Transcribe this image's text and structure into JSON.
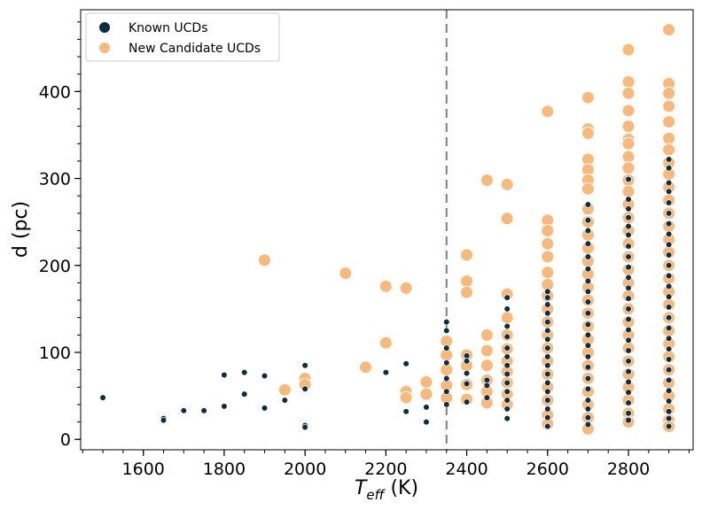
{
  "chart_data": {
    "type": "scatter",
    "xlabel_main": "T",
    "xlabel_sub": "eff",
    "xlabel_unit": " (K)",
    "ylabel": "d (pc)",
    "xlim": [
      1445,
      2960
    ],
    "ylim": [
      -12,
      494
    ],
    "xticks": [
      1600,
      1800,
      2000,
      2200,
      2400,
      2600,
      2800
    ],
    "yticks": [
      0,
      100,
      200,
      300,
      400
    ],
    "xminor_step": 50,
    "yminor_step": 20,
    "vline_x": 2350,
    "colors": {
      "known": "#0b2e45",
      "candidate": "#f9b97a",
      "vline": "#808080"
    },
    "legend": {
      "position": "top-left",
      "entries": [
        "Known UCDs",
        "New Candidate UCDs"
      ]
    },
    "series": [
      {
        "name": "New Candidate UCDs",
        "points": [
          [
            1900,
            206
          ],
          [
            1950,
            57
          ],
          [
            2000,
            70
          ],
          [
            2000,
            63
          ],
          [
            2100,
            191
          ],
          [
            2150,
            83
          ],
          [
            2200,
            176
          ],
          [
            2200,
            111
          ],
          [
            2250,
            174
          ],
          [
            2250,
            55
          ],
          [
            2250,
            48
          ],
          [
            2300,
            66
          ],
          [
            2300,
            52
          ],
          [
            2350,
            113
          ],
          [
            2350,
            97
          ],
          [
            2350,
            80
          ],
          [
            2350,
            62
          ],
          [
            2350,
            48
          ],
          [
            2400,
            212
          ],
          [
            2400,
            182
          ],
          [
            2400,
            169
          ],
          [
            2400,
            97
          ],
          [
            2400,
            85
          ],
          [
            2400,
            63
          ],
          [
            2400,
            46
          ],
          [
            2450,
            298
          ],
          [
            2450,
            120
          ],
          [
            2450,
            102
          ],
          [
            2450,
            85
          ],
          [
            2450,
            68
          ],
          [
            2450,
            55
          ],
          [
            2450,
            42
          ],
          [
            2500,
            293
          ],
          [
            2500,
            254
          ],
          [
            2500,
            167
          ],
          [
            2500,
            140
          ],
          [
            2500,
            120
          ],
          [
            2500,
            104
          ],
          [
            2500,
            90
          ],
          [
            2500,
            78
          ],
          [
            2500,
            65
          ],
          [
            2500,
            52
          ],
          [
            2500,
            40
          ],
          [
            2600,
            377
          ],
          [
            2600,
            252
          ],
          [
            2600,
            240
          ],
          [
            2600,
            225
          ],
          [
            2600,
            210
          ],
          [
            2600,
            192
          ],
          [
            2600,
            178
          ],
          [
            2600,
            165
          ],
          [
            2600,
            150
          ],
          [
            2600,
            135
          ],
          [
            2600,
            120
          ],
          [
            2600,
            105
          ],
          [
            2600,
            90
          ],
          [
            2600,
            75
          ],
          [
            2600,
            60
          ],
          [
            2600,
            45
          ],
          [
            2600,
            28
          ],
          [
            2600,
            18
          ],
          [
            2700,
            393
          ],
          [
            2700,
            357
          ],
          [
            2700,
            352
          ],
          [
            2700,
            322
          ],
          [
            2700,
            310
          ],
          [
            2700,
            298
          ],
          [
            2700,
            288
          ],
          [
            2700,
            265
          ],
          [
            2700,
            250
          ],
          [
            2700,
            235
          ],
          [
            2700,
            220
          ],
          [
            2700,
            205
          ],
          [
            2700,
            190
          ],
          [
            2700,
            175
          ],
          [
            2700,
            160
          ],
          [
            2700,
            145
          ],
          [
            2700,
            130
          ],
          [
            2700,
            115
          ],
          [
            2700,
            100
          ],
          [
            2700,
            85
          ],
          [
            2700,
            70
          ],
          [
            2700,
            55
          ],
          [
            2700,
            40
          ],
          [
            2700,
            25
          ],
          [
            2700,
            12
          ],
          [
            2800,
            448
          ],
          [
            2800,
            411
          ],
          [
            2800,
            398
          ],
          [
            2800,
            378
          ],
          [
            2800,
            360
          ],
          [
            2800,
            345
          ],
          [
            2800,
            340
          ],
          [
            2800,
            325
          ],
          [
            2800,
            312
          ],
          [
            2800,
            298
          ],
          [
            2800,
            285
          ],
          [
            2800,
            270
          ],
          [
            2800,
            255
          ],
          [
            2800,
            240
          ],
          [
            2800,
            225
          ],
          [
            2800,
            210
          ],
          [
            2800,
            195
          ],
          [
            2800,
            180
          ],
          [
            2800,
            165
          ],
          [
            2800,
            150
          ],
          [
            2800,
            135
          ],
          [
            2800,
            120
          ],
          [
            2800,
            105
          ],
          [
            2800,
            90
          ],
          [
            2800,
            75
          ],
          [
            2800,
            60
          ],
          [
            2800,
            45
          ],
          [
            2800,
            30
          ],
          [
            2800,
            20
          ],
          [
            2900,
            471
          ],
          [
            2900,
            409
          ],
          [
            2900,
            398
          ],
          [
            2900,
            383
          ],
          [
            2900,
            365
          ],
          [
            2900,
            346
          ],
          [
            2900,
            333
          ],
          [
            2900,
            318
          ],
          [
            2900,
            305
          ],
          [
            2900,
            290
          ],
          [
            2900,
            275
          ],
          [
            2900,
            260
          ],
          [
            2900,
            245
          ],
          [
            2900,
            230
          ],
          [
            2900,
            215
          ],
          [
            2900,
            200
          ],
          [
            2900,
            185
          ],
          [
            2900,
            170
          ],
          [
            2900,
            155
          ],
          [
            2900,
            140
          ],
          [
            2900,
            125
          ],
          [
            2900,
            110
          ],
          [
            2900,
            95
          ],
          [
            2900,
            80
          ],
          [
            2900,
            65
          ],
          [
            2900,
            50
          ],
          [
            2900,
            35
          ],
          [
            2900,
            22
          ],
          [
            2900,
            15
          ]
        ]
      },
      {
        "name": "Known UCDs",
        "points": [
          [
            1500,
            48
          ],
          [
            1650,
            24
          ],
          [
            1650,
            22
          ],
          [
            1700,
            33
          ],
          [
            1750,
            33
          ],
          [
            1800,
            74
          ],
          [
            1800,
            38
          ],
          [
            1850,
            77
          ],
          [
            1850,
            52
          ],
          [
            1900,
            73
          ],
          [
            1900,
            36
          ],
          [
            1950,
            45
          ],
          [
            2000,
            85
          ],
          [
            2000,
            58
          ],
          [
            2000,
            16
          ],
          [
            2000,
            14
          ],
          [
            2200,
            77
          ],
          [
            2250,
            87
          ],
          [
            2250,
            32
          ],
          [
            2300,
            37
          ],
          [
            2300,
            20
          ],
          [
            2350,
            135
          ],
          [
            2350,
            125
          ],
          [
            2350,
            105
          ],
          [
            2350,
            88
          ],
          [
            2350,
            70
          ],
          [
            2350,
            55
          ],
          [
            2350,
            40
          ],
          [
            2400,
            96
          ],
          [
            2400,
            90
          ],
          [
            2400,
            76
          ],
          [
            2400,
            64
          ],
          [
            2400,
            43
          ],
          [
            2450,
            68
          ],
          [
            2450,
            62
          ],
          [
            2450,
            48
          ],
          [
            2500,
            163
          ],
          [
            2500,
            150
          ],
          [
            2500,
            130
          ],
          [
            2500,
            118
          ],
          [
            2500,
            105
          ],
          [
            2500,
            95
          ],
          [
            2500,
            85
          ],
          [
            2500,
            75
          ],
          [
            2500,
            65
          ],
          [
            2500,
            55
          ],
          [
            2500,
            45
          ],
          [
            2500,
            35
          ],
          [
            2500,
            24
          ],
          [
            2600,
            170
          ],
          [
            2600,
            163
          ],
          [
            2600,
            155
          ],
          [
            2600,
            145
          ],
          [
            2600,
            135
          ],
          [
            2600,
            125
          ],
          [
            2600,
            115
          ],
          [
            2600,
            105
          ],
          [
            2600,
            95
          ],
          [
            2600,
            85
          ],
          [
            2600,
            75
          ],
          [
            2600,
            65
          ],
          [
            2600,
            55
          ],
          [
            2600,
            45
          ],
          [
            2600,
            35
          ],
          [
            2600,
            25
          ],
          [
            2600,
            15
          ],
          [
            2700,
            270
          ],
          [
            2700,
            252
          ],
          [
            2700,
            240
          ],
          [
            2700,
            225
          ],
          [
            2700,
            210
          ],
          [
            2700,
            196
          ],
          [
            2700,
            182
          ],
          [
            2700,
            170
          ],
          [
            2700,
            158
          ],
          [
            2700,
            145
          ],
          [
            2700,
            132
          ],
          [
            2700,
            120
          ],
          [
            2700,
            108
          ],
          [
            2700,
            95
          ],
          [
            2700,
            83
          ],
          [
            2700,
            70
          ],
          [
            2700,
            58
          ],
          [
            2700,
            45
          ],
          [
            2700,
            35
          ],
          [
            2700,
            25
          ],
          [
            2700,
            17
          ],
          [
            2800,
            299
          ],
          [
            2800,
            276
          ],
          [
            2800,
            265
          ],
          [
            2800,
            255
          ],
          [
            2800,
            245
          ],
          [
            2800,
            235
          ],
          [
            2800,
            222
          ],
          [
            2800,
            210
          ],
          [
            2800,
            198
          ],
          [
            2800,
            186
          ],
          [
            2800,
            174
          ],
          [
            2800,
            162
          ],
          [
            2800,
            150
          ],
          [
            2800,
            138
          ],
          [
            2800,
            126
          ],
          [
            2800,
            114
          ],
          [
            2800,
            102
          ],
          [
            2800,
            90
          ],
          [
            2800,
            78
          ],
          [
            2800,
            66
          ],
          [
            2800,
            54
          ],
          [
            2800,
            42
          ],
          [
            2800,
            30
          ],
          [
            2800,
            22
          ],
          [
            2900,
            322
          ],
          [
            2900,
            312
          ],
          [
            2900,
            295
          ],
          [
            2900,
            285
          ],
          [
            2900,
            272
          ],
          [
            2900,
            260
          ],
          [
            2900,
            248
          ],
          [
            2900,
            236
          ],
          [
            2900,
            224
          ],
          [
            2900,
            212
          ],
          [
            2900,
            200
          ],
          [
            2900,
            188
          ],
          [
            2900,
            176
          ],
          [
            2900,
            164
          ],
          [
            2900,
            152
          ],
          [
            2900,
            140
          ],
          [
            2900,
            128
          ],
          [
            2900,
            116
          ],
          [
            2900,
            104
          ],
          [
            2900,
            92
          ],
          [
            2900,
            80
          ],
          [
            2900,
            68
          ],
          [
            2900,
            56
          ],
          [
            2900,
            44
          ],
          [
            2900,
            32
          ],
          [
            2900,
            24
          ],
          [
            2900,
            15
          ]
        ]
      }
    ]
  }
}
